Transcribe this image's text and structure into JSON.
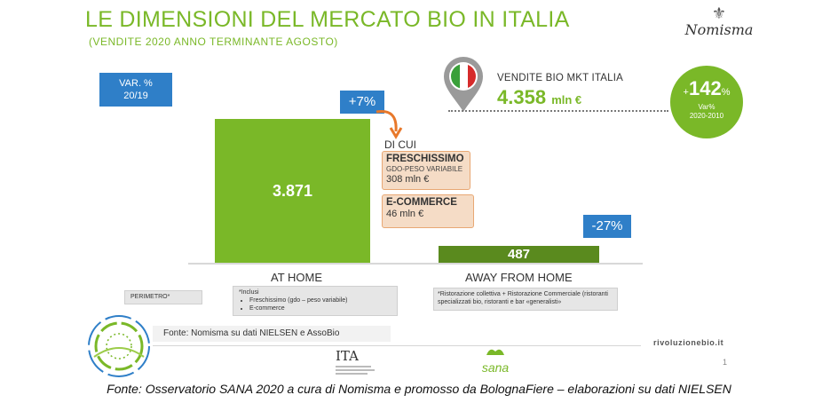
{
  "header": {
    "title": "LE DIMENSIONI DEL MERCATO BIO IN ITALIA",
    "subtitle": "(VENDITE 2020 ANNO TERMINANTE AGOSTO)",
    "logo_text": "Nomisma"
  },
  "var_label": {
    "line1": "VAR. %",
    "line2": "20/19"
  },
  "chart_data": {
    "type": "bar",
    "categories": [
      "AT HOME",
      "AWAY FROM HOME"
    ],
    "values": [
      3871,
      487
    ],
    "value_labels": [
      "3.871",
      "487"
    ],
    "changes": [
      "+7%",
      "-27%"
    ],
    "ylim": [
      0,
      4000
    ],
    "colors": [
      "#7ab828",
      "#5a8a1e"
    ]
  },
  "di_cui": {
    "label": "DI CUI",
    "freschissimo": {
      "title": "FRESCHISSIMO",
      "sub": "GDO-PESO VARIABILE",
      "value": "308 mln €"
    },
    "ecommerce": {
      "title": "E-COMMERCE",
      "value": "46 mln €"
    }
  },
  "notes": {
    "perimetro": "PERIMETRO*",
    "home_intro": "*Inclusi",
    "home_items": [
      "Freschissimo (gdo – peso variabile)",
      "E-commerce"
    ],
    "away": "*Ristorazione collettiva + Ristorazione Commerciale (ristoranti specializzati bio, ristoranti e bar «generalisti»"
  },
  "vendite": {
    "label": "VENDITE BIO MKT ITALIA",
    "value": "4.358",
    "unit": "mln €"
  },
  "growth": {
    "plus": "+",
    "value": "142",
    "pct": "%",
    "label1": "Var%",
    "label2": "2020-2010"
  },
  "footer": {
    "fonte": "Fonte: Nomisma su dati NIELSEN e AssoBio",
    "site": "rivoluzionebio.it",
    "page": "1",
    "ita": "ITA",
    "sana": "sana"
  },
  "caption": "Fonte: Osservatorio SANA 2020 a cura di Nomisma e promosso da BolognaFiere – elaborazioni su dati NIELSEN",
  "colors": {
    "green": "#7ab828",
    "dark_green": "#5a8a1e",
    "blue": "#2f7fc8",
    "orange": "#e8782a",
    "peach": "#f5dcc6"
  }
}
